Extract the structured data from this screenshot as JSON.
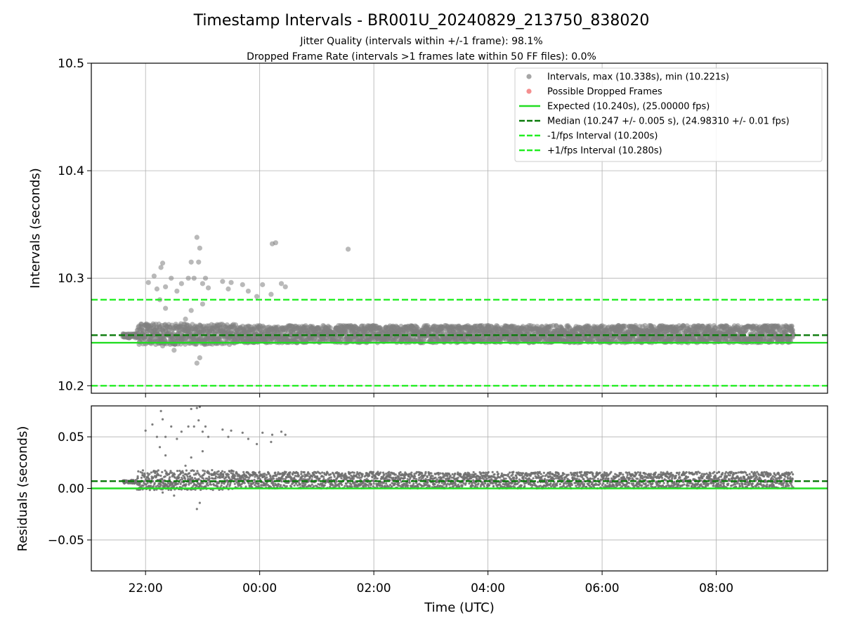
{
  "chart_data": [
    {
      "type": "scatter",
      "title": "Timestamp Intervals - BR001U_20240829_213750_838020",
      "subtitles": [
        "Jitter Quality (intervals within +/-1 frame): 98.1%",
        "Dropped Frame Rate (intervals >1 frames late within 50 FF files): 0.0%"
      ],
      "ylabel": "Intervals (seconds)",
      "ylim": [
        10.193,
        10.5
      ],
      "yticks": [
        10.2,
        10.3,
        10.4,
        10.5
      ],
      "ytick_labels": [
        "10.2",
        "10.3",
        "10.4",
        "10.5"
      ],
      "x_unit": "hours (UTC) since 00:00 on 2024-08-29",
      "grid": true,
      "legend_position": "top-right",
      "series": [
        {
          "name": "Intervals, max (10.338s), min (10.221s)",
          "kind": "scatter",
          "color": "#808080",
          "band_x": [
            21.6,
            33.35
          ],
          "dense_band_y": [
            10.24,
            10.256
          ],
          "outlier_points": [
            {
              "x": 22.05,
              "y": 10.296
            },
            {
              "x": 22.15,
              "y": 10.302
            },
            {
              "x": 22.2,
              "y": 10.29
            },
            {
              "x": 22.27,
              "y": 10.31
            },
            {
              "x": 22.3,
              "y": 10.314
            },
            {
              "x": 22.35,
              "y": 10.292
            },
            {
              "x": 22.45,
              "y": 10.3
            },
            {
              "x": 22.55,
              "y": 10.288
            },
            {
              "x": 22.63,
              "y": 10.295
            },
            {
              "x": 22.75,
              "y": 10.3
            },
            {
              "x": 22.8,
              "y": 10.315
            },
            {
              "x": 22.85,
              "y": 10.3
            },
            {
              "x": 22.9,
              "y": 10.338
            },
            {
              "x": 22.95,
              "y": 10.328
            },
            {
              "x": 22.93,
              "y": 10.315
            },
            {
              "x": 23.0,
              "y": 10.295
            },
            {
              "x": 23.05,
              "y": 10.3
            },
            {
              "x": 23.1,
              "y": 10.291
            },
            {
              "x": 23.35,
              "y": 10.297
            },
            {
              "x": 23.45,
              "y": 10.29
            },
            {
              "x": 23.5,
              "y": 10.296
            },
            {
              "x": 23.7,
              "y": 10.294
            },
            {
              "x": 23.8,
              "y": 10.288
            },
            {
              "x": 23.95,
              "y": 10.283
            },
            {
              "x": 24.05,
              "y": 10.294
            },
            {
              "x": 24.2,
              "y": 10.285
            },
            {
              "x": 24.22,
              "y": 10.332
            },
            {
              "x": 24.28,
              "y": 10.333
            },
            {
              "x": 24.38,
              "y": 10.295
            },
            {
              "x": 24.45,
              "y": 10.292
            },
            {
              "x": 25.55,
              "y": 10.327
            },
            {
              "x": 22.9,
              "y": 10.221
            },
            {
              "x": 22.95,
              "y": 10.226
            },
            {
              "x": 22.5,
              "y": 10.233
            },
            {
              "x": 22.3,
              "y": 10.237
            },
            {
              "x": 22.25,
              "y": 10.28
            },
            {
              "x": 22.35,
              "y": 10.272
            },
            {
              "x": 22.8,
              "y": 10.27
            },
            {
              "x": 23.0,
              "y": 10.276
            },
            {
              "x": 22.7,
              "y": 10.262
            }
          ]
        },
        {
          "name": "Possible Dropped Frames",
          "kind": "scatter",
          "color": "#f06060",
          "points": []
        },
        {
          "name": "Expected (10.240s), (25.00000 fps)",
          "kind": "hline",
          "y": 10.24,
          "color": "#22dd22",
          "style": "solid"
        },
        {
          "name": "Median (10.247 +/- 0.005 s), (24.98310 +/- 0.01 fps)",
          "kind": "hline",
          "y": 10.247,
          "color": "#0a7a0a",
          "style": "dashed"
        },
        {
          "name": "-1/fps Interval (10.200s)",
          "kind": "hline",
          "y": 10.2,
          "color": "#22ee22",
          "style": "dashed"
        },
        {
          "name": "+1/fps Interval (10.280s)",
          "kind": "hline",
          "y": 10.28,
          "color": "#22ee22",
          "style": "dashed"
        }
      ]
    },
    {
      "type": "scatter",
      "xlabel": "Time (UTC)",
      "ylabel": "Residuals (seconds)",
      "ylim": [
        -0.08,
        0.08
      ],
      "yticks": [
        -0.05,
        0.0,
        0.05
      ],
      "ytick_labels": [
        "−0.05",
        "0.00",
        "0.05"
      ],
      "xlim": [
        21.05,
        33.95
      ],
      "xticks": [
        22,
        24,
        26,
        28,
        30,
        32
      ],
      "xtick_labels": [
        "22:00",
        "00:00",
        "02:00",
        "04:00",
        "06:00",
        "08:00"
      ],
      "x_unit": "hours (UTC) since 00:00 on 2024-08-29",
      "grid": true,
      "series": [
        {
          "name": "Residuals",
          "kind": "scatter",
          "color": "#707070",
          "band_x": [
            21.6,
            33.35
          ],
          "dense_band_y": [
            0.0,
            0.016
          ],
          "outlier_points": [
            {
              "x": 22.0,
              "y": 0.056
            },
            {
              "x": 22.12,
              "y": 0.062
            },
            {
              "x": 22.2,
              "y": 0.05
            },
            {
              "x": 22.27,
              "y": 0.075
            },
            {
              "x": 22.3,
              "y": 0.067
            },
            {
              "x": 22.35,
              "y": 0.05
            },
            {
              "x": 22.45,
              "y": 0.06
            },
            {
              "x": 22.55,
              "y": 0.048
            },
            {
              "x": 22.63,
              "y": 0.055
            },
            {
              "x": 22.75,
              "y": 0.06
            },
            {
              "x": 22.8,
              "y": 0.077
            },
            {
              "x": 22.85,
              "y": 0.06
            },
            {
              "x": 22.9,
              "y": 0.078
            },
            {
              "x": 22.95,
              "y": 0.079
            },
            {
              "x": 22.93,
              "y": 0.066
            },
            {
              "x": 23.0,
              "y": 0.055
            },
            {
              "x": 23.05,
              "y": 0.06
            },
            {
              "x": 23.1,
              "y": 0.05
            },
            {
              "x": 23.35,
              "y": 0.057
            },
            {
              "x": 23.45,
              "y": 0.05
            },
            {
              "x": 23.5,
              "y": 0.056
            },
            {
              "x": 23.7,
              "y": 0.054
            },
            {
              "x": 23.8,
              "y": 0.048
            },
            {
              "x": 23.95,
              "y": 0.043
            },
            {
              "x": 24.05,
              "y": 0.054
            },
            {
              "x": 24.2,
              "y": 0.045
            },
            {
              "x": 24.22,
              "y": 0.052
            },
            {
              "x": 24.38,
              "y": 0.055
            },
            {
              "x": 24.45,
              "y": 0.052
            },
            {
              "x": 22.9,
              "y": -0.02
            },
            {
              "x": 22.95,
              "y": -0.014
            },
            {
              "x": 22.5,
              "y": -0.007
            },
            {
              "x": 22.3,
              "y": -0.004
            },
            {
              "x": 22.25,
              "y": 0.04
            },
            {
              "x": 22.35,
              "y": 0.032
            },
            {
              "x": 22.8,
              "y": 0.03
            },
            {
              "x": 23.0,
              "y": 0.036
            },
            {
              "x": 22.7,
              "y": 0.022
            }
          ]
        },
        {
          "name": "Expected",
          "kind": "hline",
          "y": 0.0,
          "color": "#22dd22",
          "style": "solid"
        },
        {
          "name": "Median",
          "kind": "hline",
          "y": 0.007,
          "color": "#0a7a0a",
          "style": "dashed"
        }
      ]
    }
  ]
}
